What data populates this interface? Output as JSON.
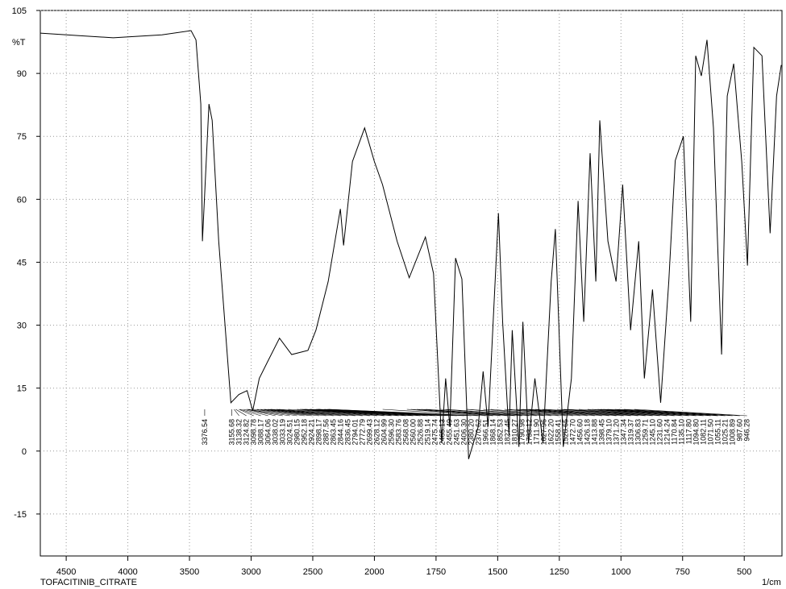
{
  "chart_data": {
    "type": "line",
    "title": "TOFACITINIB_CITRATE",
    "x_label": "1/cm",
    "y_label": "%T",
    "color": "#000000",
    "grid": true,
    "xlim": [
      4710,
      347
    ],
    "x_scale_break": 2000,
    "x_scale_ratio": 2,
    "ylim": [
      -25,
      105
    ],
    "xticks": [
      4500,
      4000,
      3500,
      3000,
      2500,
      2000,
      1750,
      1500,
      1250,
      1000,
      750,
      500
    ],
    "yticks": [
      -15,
      0,
      15,
      30,
      45,
      60,
      75,
      90,
      105
    ],
    "x": [
      4710,
      4395,
      4118,
      3724,
      3487,
      3447,
      3408,
      3395,
      3342,
      3316,
      3263,
      3164,
      3099,
      3033,
      2987,
      2934,
      2868,
      2770,
      2671,
      2539,
      2474,
      2375,
      2276,
      2250,
      2178,
      2079,
      2000,
      1967,
      1908,
      1859,
      1793,
      1760,
      1727,
      1711,
      1694,
      1671,
      1645,
      1618,
      1579,
      1559,
      1539,
      1497,
      1480,
      1454,
      1441,
      1414,
      1398,
      1375,
      1349,
      1316,
      1283,
      1266,
      1234,
      1201,
      1174,
      1151,
      1125,
      1102,
      1086,
      1053,
      1020,
      993,
      961,
      928,
      905,
      872,
      839,
      806,
      780,
      747,
      717,
      697,
      674,
      651,
      625,
      592,
      569,
      543,
      510,
      487,
      461,
      428,
      395,
      369,
      350
    ],
    "values": [
      99.6,
      99,
      98.5,
      99.2,
      100.2,
      98,
      82.7,
      50,
      82.7,
      78.8,
      50,
      11.5,
      13.5,
      14.4,
      9.6,
      17.3,
      21.2,
      26.9,
      23,
      24,
      28.8,
      40.4,
      57.7,
      49,
      69,
      77,
      69,
      63.5,
      50,
      41.3,
      51,
      42.3,
      1.9,
      17.3,
      5.8,
      46,
      41,
      -1.9,
      5.8,
      19,
      5.8,
      56.7,
      30.8,
      3.8,
      28.8,
      1,
      30.8,
      1.9,
      17.3,
      1.9,
      40.4,
      52.9,
      1,
      17.3,
      59.6,
      30.8,
      71,
      40.4,
      78.8,
      50,
      40.4,
      63.5,
      28.8,
      50,
      17.3,
      38.5,
      11.5,
      40.4,
      69.2,
      75,
      30.8,
      94.2,
      89.4,
      98,
      77,
      23,
      84.6,
      92.3,
      69,
      44.2,
      96.2,
      94.2,
      51.9,
      84.6,
      92
    ],
    "peak_x": [
      3376.54,
      3155.68,
      3138.32,
      3124.82,
      3098.78,
      3088.17,
      3064.06,
      3038.02,
      3033.19,
      3024.51,
      2980.15,
      2952.18,
      2924.21,
      2898.17,
      2887.56,
      2863.45,
      2844.16,
      2836.45,
      2794.01,
      2772.79,
      2699.43,
      2628.12,
      2604.99,
      2596.3,
      2583.76,
      2568.08,
      2560,
      2526.88,
      2519.14,
      2475.74,
      2465.13,
      2455.49,
      2451.63,
      2406.3,
      2380.2,
      2370.62,
      1966.51,
      1868.14,
      1852.53,
      1827.45,
      1810.27,
      1790.98,
      1733.12,
      1711.9,
      1627.96,
      1622.2,
      1558.41,
      1528.65,
      1472.7,
      1456.6,
      1426.18,
      1413.88,
      1398.45,
      1379.1,
      1371.2,
      1347.34,
      1319.37,
      1306.83,
      1259.71,
      1245.1,
      1231.6,
      1214.24,
      1170.84,
      1135.1,
      1117.8,
      1094.8,
      1082.11,
      1071.5,
      1055.11,
      1025.21,
      1008.89,
      946.28,
      987.6
    ],
    "peak_labels": [
      "3376.54",
      "3155.68",
      "3138.32",
      "3124.82",
      "3098.78",
      "3088.17",
      "3064.06",
      "3038.02",
      "3033.19",
      "3024.51",
      "2980.15",
      "2952.18",
      "2924.21",
      "2898.17",
      "2887.56",
      "2863.45",
      "2844.16",
      "2836.45",
      "2794.01",
      "2772.79",
      "2699.43",
      "2628.12",
      "2604.99",
      "2596.30",
      "2583.76",
      "2568.08",
      "2560.00",
      "2526.88",
      "2519.14",
      "2475.74",
      "2465.13",
      "2455.49",
      "2451.63",
      "2406.30",
      "2380.20",
      "2370.62",
      "1966.51",
      "1868.14",
      "1852.53",
      "1827.45",
      "1810.27",
      "1790.98",
      "1733.12",
      "1711.90",
      "1627.96",
      "1622.20",
      "1558.41",
      "1528.65",
      "1472.70",
      "1456.60",
      "1426.18",
      "1413.88",
      "1398.45",
      "1379.10",
      "1371.20",
      "1347.34",
      "1319.37",
      "1306.83",
      "1259.71",
      "1245.10",
      "1231.60",
      "1214.24",
      "1170.84",
      "1135.10",
      "1117.80",
      "1094.80",
      "1082.11",
      "1071.50",
      "1055.11",
      "1025.21",
      "1008.89",
      "946.28",
      "987.60"
    ]
  }
}
